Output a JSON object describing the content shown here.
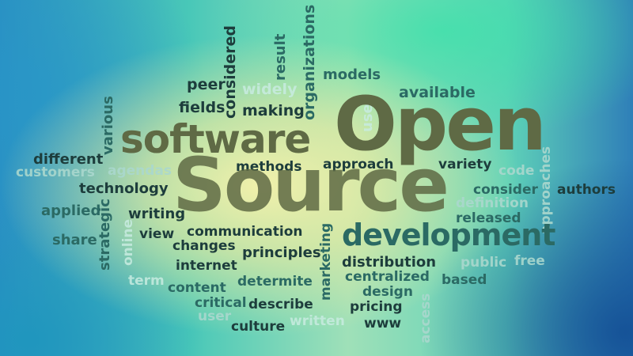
{
  "words": [
    {
      "text": "considered"
    },
    {
      "text": "result"
    },
    {
      "text": "organizations"
    },
    {
      "text": "peer"
    },
    {
      "text": "widely"
    },
    {
      "text": "models"
    },
    {
      "text": "available"
    },
    {
      "text": "fields"
    },
    {
      "text": "making"
    },
    {
      "text": "use"
    },
    {
      "text": "Open"
    },
    {
      "text": "software"
    },
    {
      "text": "various"
    },
    {
      "text": "different"
    },
    {
      "text": "customers"
    },
    {
      "text": "agendas"
    },
    {
      "text": "methods"
    },
    {
      "text": "approach"
    },
    {
      "text": "variety"
    },
    {
      "text": "code"
    },
    {
      "text": "approaches"
    },
    {
      "text": "technology"
    },
    {
      "text": "Source"
    },
    {
      "text": "consider"
    },
    {
      "text": "authors"
    },
    {
      "text": "definition"
    },
    {
      "text": "applied"
    },
    {
      "text": "strategic"
    },
    {
      "text": "writing"
    },
    {
      "text": "released"
    },
    {
      "text": "share"
    },
    {
      "text": "online"
    },
    {
      "text": "view"
    },
    {
      "text": "communication"
    },
    {
      "text": "development"
    },
    {
      "text": "changes"
    },
    {
      "text": "principles"
    },
    {
      "text": "marketing"
    },
    {
      "text": "public"
    },
    {
      "text": "free"
    },
    {
      "text": "internet"
    },
    {
      "text": "distribution"
    },
    {
      "text": "term"
    },
    {
      "text": "determite"
    },
    {
      "text": "centralized"
    },
    {
      "text": "based"
    },
    {
      "text": "content"
    },
    {
      "text": "design"
    },
    {
      "text": "critical"
    },
    {
      "text": "describe"
    },
    {
      "text": "pricing"
    },
    {
      "text": "user"
    },
    {
      "text": "access"
    },
    {
      "text": "culture"
    },
    {
      "text": "written"
    },
    {
      "text": "www"
    }
  ]
}
